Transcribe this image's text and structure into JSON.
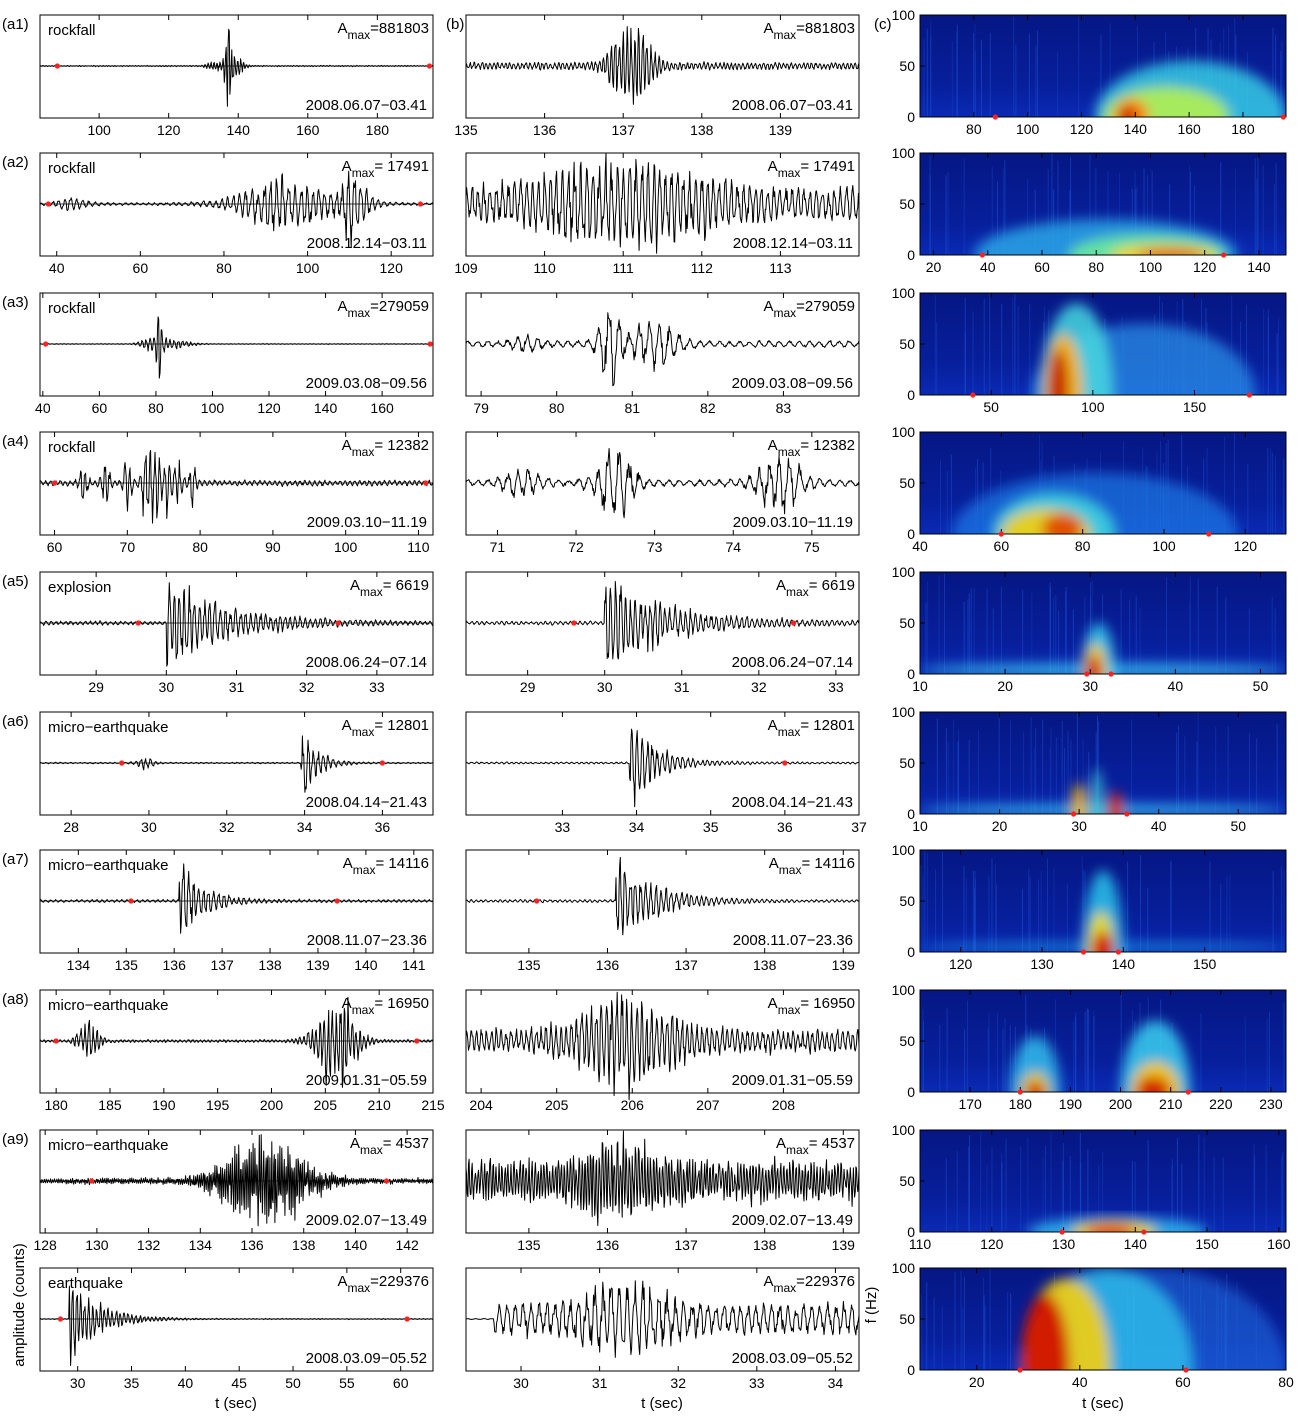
{
  "figure": {
    "panel_labels": [
      "(a1)",
      "(a2)",
      "(a3)",
      "(a4)",
      "(a5)",
      "(a6)",
      "(a7)",
      "(a8)",
      "(a9)",
      "(b)",
      "(c)"
    ],
    "amax_prefix": "A",
    "amax_sub": "max",
    "xlabel": "t (sec)",
    "ylabel_left": "amplitude (counts)",
    "ylabel_right": "f (Hz)",
    "trace_color": "#000000",
    "marker_color": "#ff2020",
    "spectrogram_colormap": "jet"
  },
  "chart_data": [
    {
      "type": "line",
      "row": 1,
      "event": "rockfall",
      "amax": "=881803",
      "date": "2008.06.07−03.41",
      "full": {
        "xlim": [
          83,
          196
        ],
        "xticks": [
          100,
          120,
          140,
          160,
          180
        ],
        "markers": [
          88,
          195
        ]
      },
      "zoom": {
        "xlim": [
          135,
          140
        ],
        "xticks": [
          135,
          136,
          137,
          138,
          139
        ],
        "markers": []
      },
      "spec": {
        "xlim": [
          60,
          196
        ],
        "xticks": [
          80,
          100,
          120,
          140,
          160,
          180
        ],
        "ylim": [
          0,
          100
        ],
        "yticks": [
          0,
          50,
          100
        ],
        "markers": [
          88,
          195
        ]
      }
    },
    {
      "type": "line",
      "row": 2,
      "event": "rockfall",
      "amax": "= 17491",
      "date": "2008.12.14−03.11",
      "full": {
        "xlim": [
          36,
          130
        ],
        "xticks": [
          40,
          60,
          80,
          100,
          120
        ],
        "markers": [
          38,
          127
        ]
      },
      "zoom": {
        "xlim": [
          109,
          114
        ],
        "xticks": [
          109,
          110,
          111,
          112,
          113
        ],
        "markers": []
      },
      "spec": {
        "xlim": [
          15,
          150
        ],
        "xticks": [
          20,
          40,
          60,
          80,
          100,
          120,
          140
        ],
        "ylim": [
          0,
          100
        ],
        "yticks": [
          0,
          50,
          100
        ],
        "markers": [
          38,
          127
        ]
      }
    },
    {
      "type": "line",
      "row": 3,
      "event": "rockfall",
      "amax": "=279059",
      "date": "2009.03.08−09.56",
      "full": {
        "xlim": [
          39,
          178
        ],
        "xticks": [
          40,
          60,
          80,
          100,
          120,
          140,
          160
        ],
        "markers": [
          41,
          177
        ]
      },
      "zoom": {
        "xlim": [
          78.8,
          84
        ],
        "xticks": [
          79,
          80,
          81,
          82,
          83
        ],
        "markers": []
      },
      "spec": {
        "xlim": [
          15,
          195
        ],
        "xticks": [
          50,
          100,
          150
        ],
        "ylim": [
          0,
          100
        ],
        "yticks": [
          0,
          50,
          100
        ],
        "markers": [
          41,
          177
        ]
      }
    },
    {
      "type": "line",
      "row": 4,
      "event": "rockfall",
      "amax": "= 12382",
      "date": "2009.03.10−11.19",
      "full": {
        "xlim": [
          58,
          112
        ],
        "xticks": [
          60,
          70,
          80,
          90,
          100,
          110
        ],
        "markers": [
          60,
          111
        ]
      },
      "zoom": {
        "xlim": [
          70.6,
          75.6
        ],
        "xticks": [
          71,
          72,
          73,
          74,
          75
        ],
        "markers": []
      },
      "spec": {
        "xlim": [
          40,
          130
        ],
        "xticks": [
          40,
          60,
          80,
          100,
          120
        ],
        "ylim": [
          0,
          100
        ],
        "yticks": [
          0,
          50,
          100
        ],
        "markers": [
          60,
          111
        ]
      }
    },
    {
      "type": "line",
      "row": 5,
      "event": "explosion",
      "amax": "=  6619",
      "date": "2008.06.24−07.14",
      "full": {
        "xlim": [
          28.2,
          33.8
        ],
        "xticks": [
          29,
          30,
          31,
          32,
          33
        ],
        "markers": [
          29.6,
          32.45
        ]
      },
      "zoom": {
        "xlim": [
          28.2,
          33.3
        ],
        "xticks": [
          29,
          30,
          31,
          32,
          33
        ],
        "markers": [
          29.6,
          32.45
        ]
      },
      "spec": {
        "xlim": [
          10,
          53
        ],
        "xticks": [
          10,
          20,
          30,
          40,
          50
        ],
        "ylim": [
          0,
          100
        ],
        "yticks": [
          0,
          50,
          100
        ],
        "markers": [
          29.6,
          32.45
        ]
      }
    },
    {
      "type": "line",
      "row": 6,
      "event": "micro−earthquake",
      "amax": "= 12801",
      "date": "2008.04.14−21.43",
      "full": {
        "xlim": [
          27.2,
          37.3
        ],
        "xticks": [
          28,
          30,
          32,
          34,
          36
        ],
        "markers": [
          29.3,
          36
        ]
      },
      "zoom": {
        "xlim": [
          31.7,
          37
        ],
        "xticks": [
          33,
          34,
          35,
          36,
          37
        ],
        "markers": [
          29.3,
          36
        ]
      },
      "spec": {
        "xlim": [
          10,
          56
        ],
        "xticks": [
          10,
          20,
          30,
          40,
          50
        ],
        "ylim": [
          0,
          100
        ],
        "yticks": [
          0,
          50,
          100
        ],
        "markers": [
          29.3,
          36
        ]
      }
    },
    {
      "type": "line",
      "row": 7,
      "event": "micro−earthquake",
      "amax": "= 14116",
      "date": "2008.11.07−23.36",
      "full": {
        "xlim": [
          133.2,
          141.4
        ],
        "xticks": [
          134,
          135,
          136,
          137,
          138,
          139,
          140,
          141
        ],
        "markers": [
          135.1,
          139.4
        ]
      },
      "zoom": {
        "xlim": [
          134.2,
          139.2
        ],
        "xticks": [
          135,
          136,
          137,
          138,
          139
        ],
        "markers": [
          135.1,
          139.4
        ]
      },
      "spec": {
        "xlim": [
          115,
          160
        ],
        "xticks": [
          120,
          130,
          140,
          150
        ],
        "ylim": [
          0,
          100
        ],
        "yticks": [
          0,
          50,
          100
        ],
        "markers": [
          135.1,
          139.4
        ]
      }
    },
    {
      "type": "line",
      "row": 8,
      "event": "micro−earthquake",
      "amax": "= 16950",
      "date": "2009.01.31−05.59",
      "full": {
        "xlim": [
          178.5,
          215
        ],
        "xticks": [
          180,
          185,
          190,
          195,
          200,
          205,
          210,
          215
        ],
        "markers": [
          180,
          213.5
        ]
      },
      "zoom": {
        "xlim": [
          203.8,
          209
        ],
        "xticks": [
          204,
          205,
          206,
          207,
          208
        ],
        "markers": []
      },
      "spec": {
        "xlim": [
          160,
          233
        ],
        "xticks": [
          170,
          180,
          190,
          200,
          210,
          220,
          230
        ],
        "ylim": [
          0,
          100
        ],
        "yticks": [
          0,
          50,
          100
        ],
        "markers": [
          180,
          213.5
        ]
      }
    },
    {
      "type": "line",
      "row": 9,
      "event": "micro−earthquake",
      "amax": "=  4537",
      "date": "2009.02.07−13.49",
      "full": {
        "xlim": [
          127.8,
          143
        ],
        "xticks": [
          128,
          130,
          132,
          134,
          136,
          138,
          140,
          142
        ],
        "markers": [
          129.8,
          141.2
        ]
      },
      "zoom": {
        "xlim": [
          134.2,
          139.2
        ],
        "xticks": [
          135,
          136,
          137,
          138,
          139
        ],
        "markers": []
      },
      "spec": {
        "xlim": [
          110,
          161
        ],
        "xticks": [
          110,
          120,
          130,
          140,
          150,
          160
        ],
        "ylim": [
          0,
          100
        ],
        "yticks": [
          0,
          50,
          100
        ],
        "markers": [
          129.8,
          141.2
        ]
      }
    },
    {
      "type": "line",
      "row": 10,
      "event": "earthquake",
      "amax": "=229376",
      "date": "2008.03.09−05.52",
      "full": {
        "xlim": [
          26.5,
          63
        ],
        "xticks": [
          30,
          35,
          40,
          45,
          50,
          55,
          60
        ],
        "markers": [
          28.4,
          60.6
        ]
      },
      "zoom": {
        "xlim": [
          29.3,
          34.3
        ],
        "xticks": [
          30,
          31,
          32,
          33,
          34
        ],
        "markers": []
      },
      "spec": {
        "xlim": [
          9,
          80
        ],
        "xticks": [
          20,
          40,
          60,
          80
        ],
        "ylim": [
          0,
          100
        ],
        "yticks": [
          0,
          50,
          100
        ],
        "markers": [
          28.4,
          60.6
        ]
      }
    }
  ]
}
